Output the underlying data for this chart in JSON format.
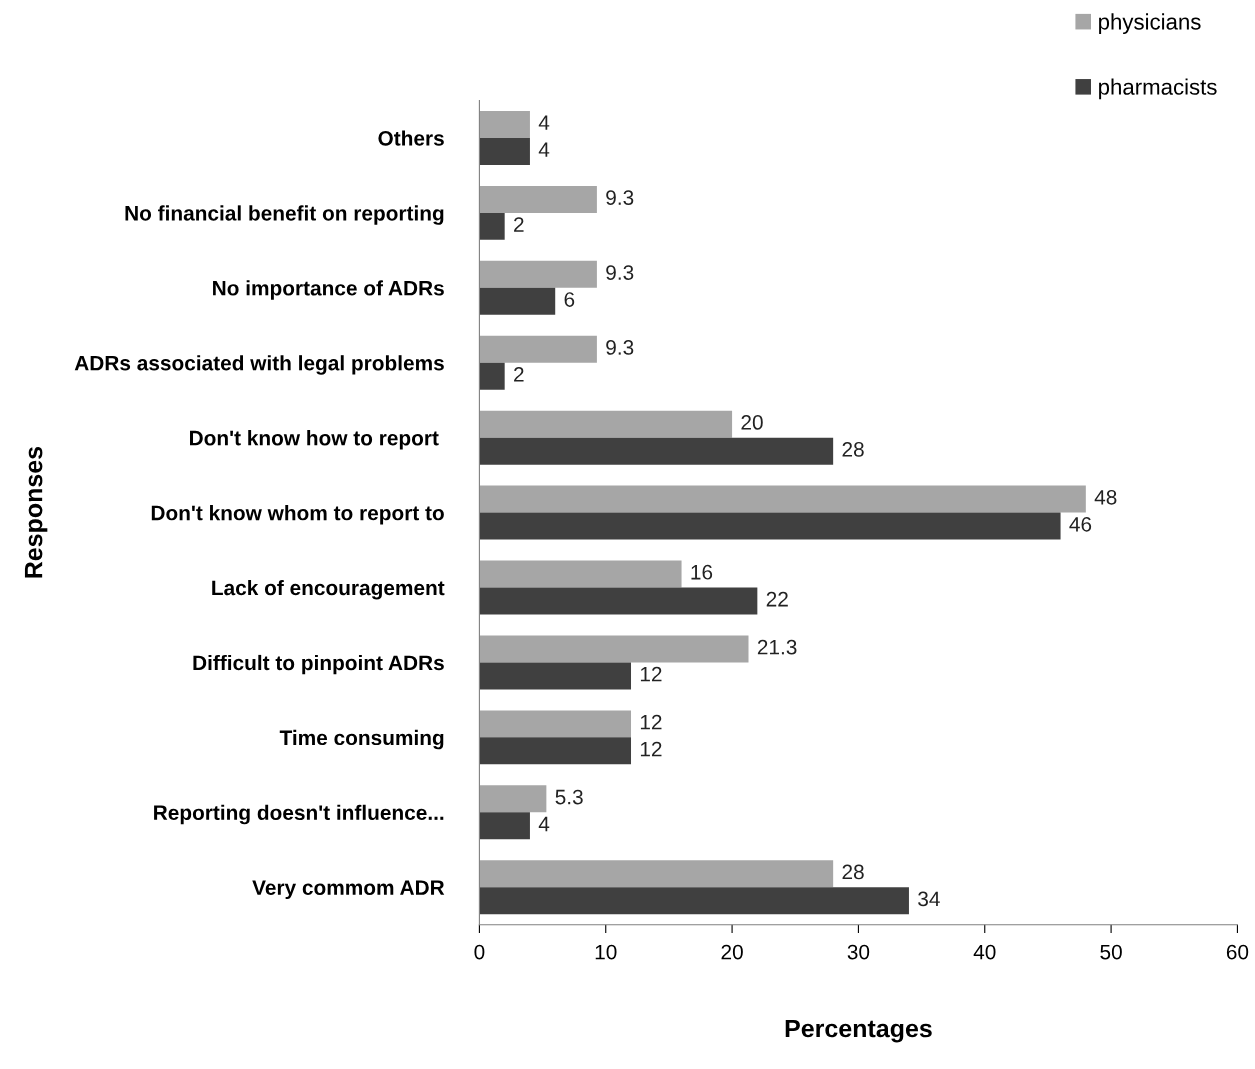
{
  "chart_data": {
    "type": "bar",
    "orientation": "horizontal",
    "xlabel": "Percentages",
    "ylabel": "Responses",
    "categories": [
      "Others",
      "No financial benefit on reporting",
      "No importance of ADRs",
      "ADRs associated with legal problems",
      "Don't know how to report ",
      "Don't know whom to report to",
      "Lack of encouragement",
      "Difficult to pinpoint ADRs",
      "Time consuming",
      "Reporting doesn't influence...",
      "Very commom ADR"
    ],
    "series": [
      {
        "name": "physicians",
        "color": "#a6a6a6",
        "values": [
          4,
          9.3,
          9.3,
          9.3,
          20,
          48,
          16,
          21.3,
          12,
          5.3,
          28
        ]
      },
      {
        "name": "pharmacists",
        "color": "#404040",
        "values": [
          4,
          2,
          6,
          2,
          28,
          46,
          22,
          12,
          12,
          4,
          34
        ]
      }
    ],
    "xlim": [
      0,
      60
    ],
    "xticks": [
      0,
      10,
      20,
      30,
      40,
      50,
      60
    ],
    "grid": false,
    "legend": "top right",
    "data_labels": true
  }
}
